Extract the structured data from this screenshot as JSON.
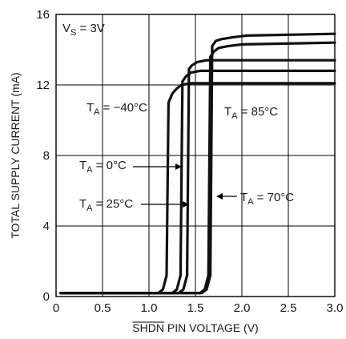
{
  "chart_data": {
    "type": "line",
    "xlabel_overbar": "SHDN",
    "xlabel_rest": " PIN VOLTAGE (V)",
    "ylabel": "TOTAL SUPPLY CURRENT (mA)",
    "xlim": [
      0,
      3.0
    ],
    "ylim": [
      0,
      16
    ],
    "grid": true,
    "x_ticks": [
      0,
      0.5,
      1.0,
      1.5,
      2.0,
      2.5,
      3.0
    ],
    "x_tick_labels": [
      "0",
      "0.5",
      "1.0",
      "1.5",
      "2.0",
      "2.5",
      "3.0"
    ],
    "y_ticks": [
      0,
      4,
      8,
      12,
      16
    ],
    "y_tick_labels": [
      "0",
      "4",
      "8",
      "12",
      "16"
    ],
    "condition": {
      "main": "V",
      "sub": "S",
      "rest": " = 3V"
    },
    "series": [
      {
        "x": [
          0.05,
          1.1,
          1.15,
          1.19,
          1.21,
          1.25,
          1.3,
          1.35,
          1.45,
          1.6,
          3.0
        ],
        "y": [
          0.2,
          0.2,
          0.4,
          1.2,
          11.0,
          11.5,
          11.8,
          12.0,
          12.1,
          12.1,
          12.1
        ]
      },
      {
        "x": [
          0.05,
          1.25,
          1.3,
          1.34,
          1.36,
          1.4,
          1.45,
          1.55,
          1.7,
          3.0
        ],
        "y": [
          0.2,
          0.2,
          0.4,
          1.2,
          12.2,
          12.5,
          12.7,
          12.8,
          12.8,
          12.8
        ]
      },
      {
        "x": [
          0.05,
          1.32,
          1.37,
          1.41,
          1.43,
          1.46,
          1.52,
          1.62,
          1.8,
          3.0
        ],
        "y": [
          0.2,
          0.2,
          0.4,
          1.2,
          12.9,
          13.1,
          13.3,
          13.4,
          13.4,
          13.4
        ]
      },
      {
        "x": [
          0.05,
          1.55,
          1.6,
          1.64,
          1.66,
          1.7,
          1.75,
          1.85,
          2.0,
          3.0
        ],
        "y": [
          0.2,
          0.2,
          0.4,
          1.2,
          13.6,
          13.9,
          14.1,
          14.2,
          14.3,
          14.4
        ]
      },
      {
        "x": [
          0.05,
          1.57,
          1.62,
          1.66,
          1.68,
          1.72,
          1.78,
          1.9,
          2.05,
          3.0
        ],
        "y": [
          0.2,
          0.2,
          0.4,
          1.2,
          14.2,
          14.5,
          14.6,
          14.7,
          14.8,
          14.9
        ]
      }
    ],
    "annotations": [
      {
        "main": "T",
        "sub": "A",
        "rest": " = −40°C"
      },
      {
        "main": "T",
        "sub": "A",
        "rest": " = 0°C"
      },
      {
        "main": "T",
        "sub": "A",
        "rest": " = 25°C"
      },
      {
        "main": "T",
        "sub": "A",
        "rest": " = 85°C"
      },
      {
        "main": "T",
        "sub": "A",
        "rest": " = 70°C"
      }
    ]
  }
}
